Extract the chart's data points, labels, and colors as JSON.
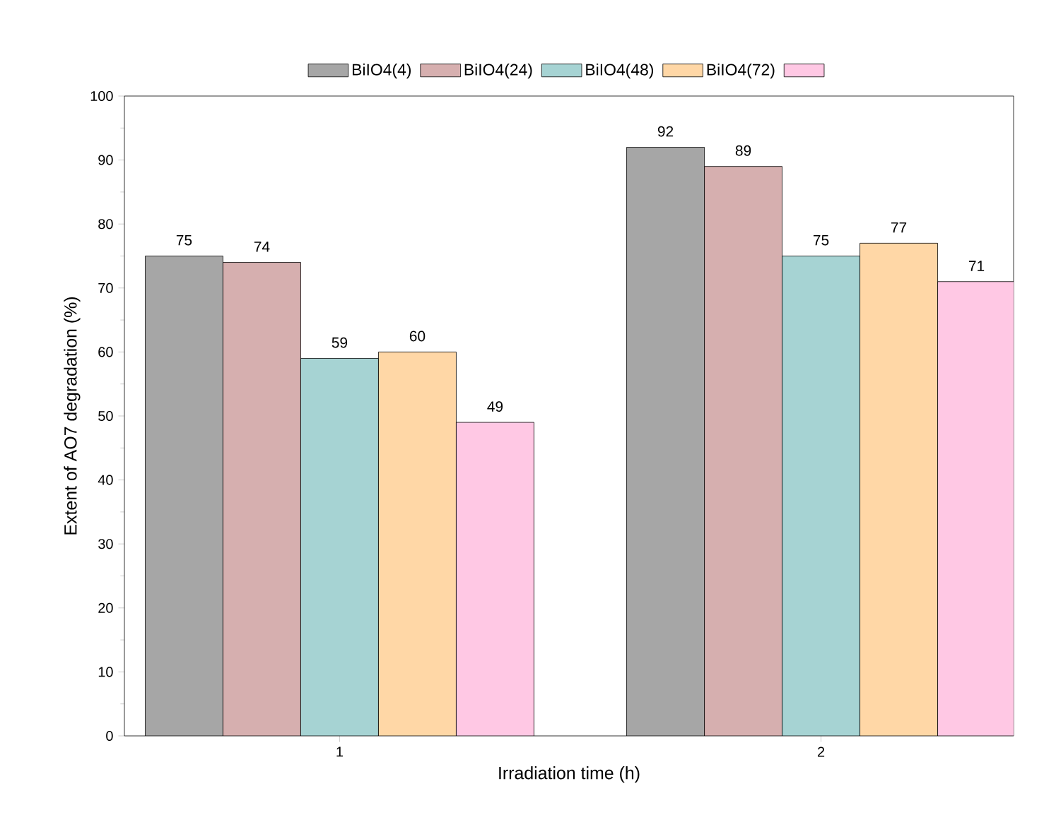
{
  "chart_data": {
    "type": "bar",
    "xlabel": "Irradiation time (h)",
    "ylabel": "Extent of AO7 degradation (%)",
    "categories": [
      "1",
      "2"
    ],
    "series": [
      {
        "name": "BiIO4(4)",
        "color": "#a6a6a6",
        "values": [
          75,
          92
        ]
      },
      {
        "name": "BiIO4(24)",
        "color": "#d6afaf",
        "values": [
          74,
          89
        ]
      },
      {
        "name": "BiIO4(48)",
        "color": "#a6d3d3",
        "values": [
          59,
          75
        ]
      },
      {
        "name": "BiIO4(72)",
        "color": "#ffd7a6",
        "values": [
          60,
          77
        ]
      },
      {
        "color": "#ffc8e4",
        "values": [
          49,
          71
        ]
      }
    ],
    "ylim": [
      0,
      100
    ],
    "yticks": [
      0,
      10,
      20,
      30,
      40,
      50,
      60,
      70,
      80,
      90,
      100
    ],
    "data_labels": true,
    "legend": "top",
    "grid": false
  }
}
